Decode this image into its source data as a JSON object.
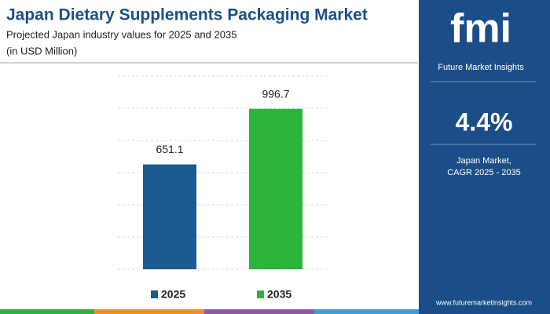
{
  "chart_data": {
    "type": "bar",
    "title": "Japan Dietary Supplements Packaging Market",
    "subtitle": "Projected Japan industry values for 2025 and 2035",
    "unit_note": "(in USD Million)",
    "categories": [
      "2025",
      "2035"
    ],
    "values": [
      651.1,
      996.7
    ],
    "colors": [
      "#1d5a91",
      "#2ab53a"
    ],
    "ylim": [
      0,
      1200
    ],
    "yticks": [
      0,
      200,
      400,
      600,
      800,
      1000,
      1200
    ],
    "grid": true
  },
  "sidebar": {
    "logo": "fmi",
    "brand": "Future Market Insights",
    "cagr": "4.4%",
    "market": "Japan Market,",
    "period": "CAGR 2025 - 2035",
    "url": "www.futuremarketinsights.com"
  }
}
